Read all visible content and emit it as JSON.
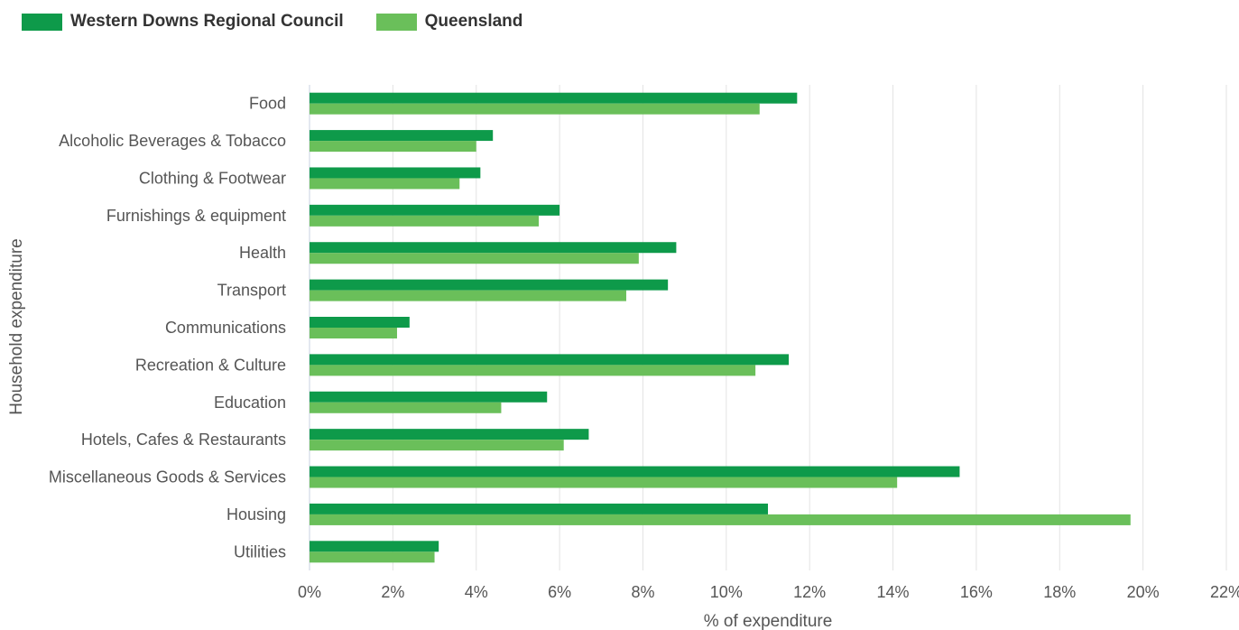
{
  "legend": {
    "items": [
      {
        "label": "Western Downs Regional Council",
        "color": "#0e9a4a"
      },
      {
        "label": "Queensland",
        "color": "#6abf5a"
      }
    ]
  },
  "chart_data": {
    "type": "bar",
    "orientation": "horizontal",
    "categories": [
      "Food",
      "Alcoholic Beverages & Tobacco",
      "Clothing & Footwear",
      "Furnishings & equipment",
      "Health",
      "Transport",
      "Communications",
      "Recreation & Culture",
      "Education",
      "Hotels, Cafes & Restaurants",
      "Miscellaneous Goods & Services",
      "Housing",
      "Utilities"
    ],
    "series": [
      {
        "name": "Western Downs Regional Council",
        "color": "#0e9a4a",
        "values": [
          11.7,
          4.4,
          4.1,
          6.0,
          8.8,
          8.6,
          2.4,
          11.5,
          5.7,
          6.7,
          15.6,
          11.0,
          3.1
        ]
      },
      {
        "name": "Queensland",
        "color": "#6abf5a",
        "values": [
          10.8,
          4.0,
          3.6,
          5.5,
          7.9,
          7.6,
          2.1,
          10.7,
          4.6,
          6.1,
          14.1,
          19.7,
          3.0
        ]
      }
    ],
    "xlabel": "% of expenditure",
    "ylabel": "Household expenditure",
    "xlim": [
      0,
      22
    ],
    "ticks": [
      "0%",
      "2%",
      "4%",
      "6%",
      "8%",
      "10%",
      "12%",
      "14%",
      "16%",
      "18%",
      "20%",
      "22%"
    ],
    "grid": true,
    "legend_position": "top-left"
  }
}
